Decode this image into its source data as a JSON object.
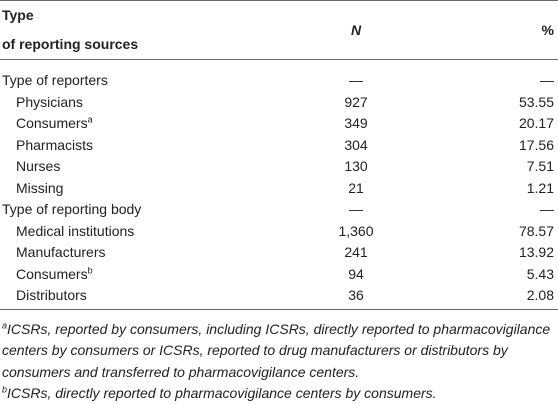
{
  "header": {
    "source": [
      "Type",
      "of reporting sources"
    ],
    "n": "N",
    "pct": "%"
  },
  "sections": [
    {
      "title": "Type of reporters",
      "n": "—",
      "pct": "—",
      "rows": [
        {
          "label": "Physicians",
          "n": "927",
          "pct": "53.55"
        },
        {
          "label": "Consumers",
          "sup": "a",
          "n": "349",
          "pct": "20.17"
        },
        {
          "label": "Pharmacists",
          "n": "304",
          "pct": "17.56"
        },
        {
          "label": "Nurses",
          "n": "130",
          "pct": "7.51"
        },
        {
          "label": "Missing",
          "n": "21",
          "pct": "1.21"
        }
      ]
    },
    {
      "title": "Type of reporting body",
      "n": "—",
      "pct": "—",
      "rows": [
        {
          "label": "Medical institutions",
          "n": "1,360",
          "pct": "78.57"
        },
        {
          "label": "Manufacturers",
          "n": "241",
          "pct": "13.92"
        },
        {
          "label": "Consumers",
          "sup": "b",
          "n": "94",
          "pct": "5.43"
        },
        {
          "label": "Distributors",
          "n": "36",
          "pct": "2.08"
        }
      ]
    }
  ],
  "footnotes": [
    {
      "mark": "a",
      "text": "ICSRs, reported by consumers, including ICSRs, directly reported to pharmacovigilance centers by consumers or ICSRs, reported to drug manufacturers or distributors by consumers and transferred to pharmacovigilance centers."
    },
    {
      "mark": "b",
      "text": "ICSRs, directly reported to pharmacovigilance centers by consumers."
    }
  ]
}
